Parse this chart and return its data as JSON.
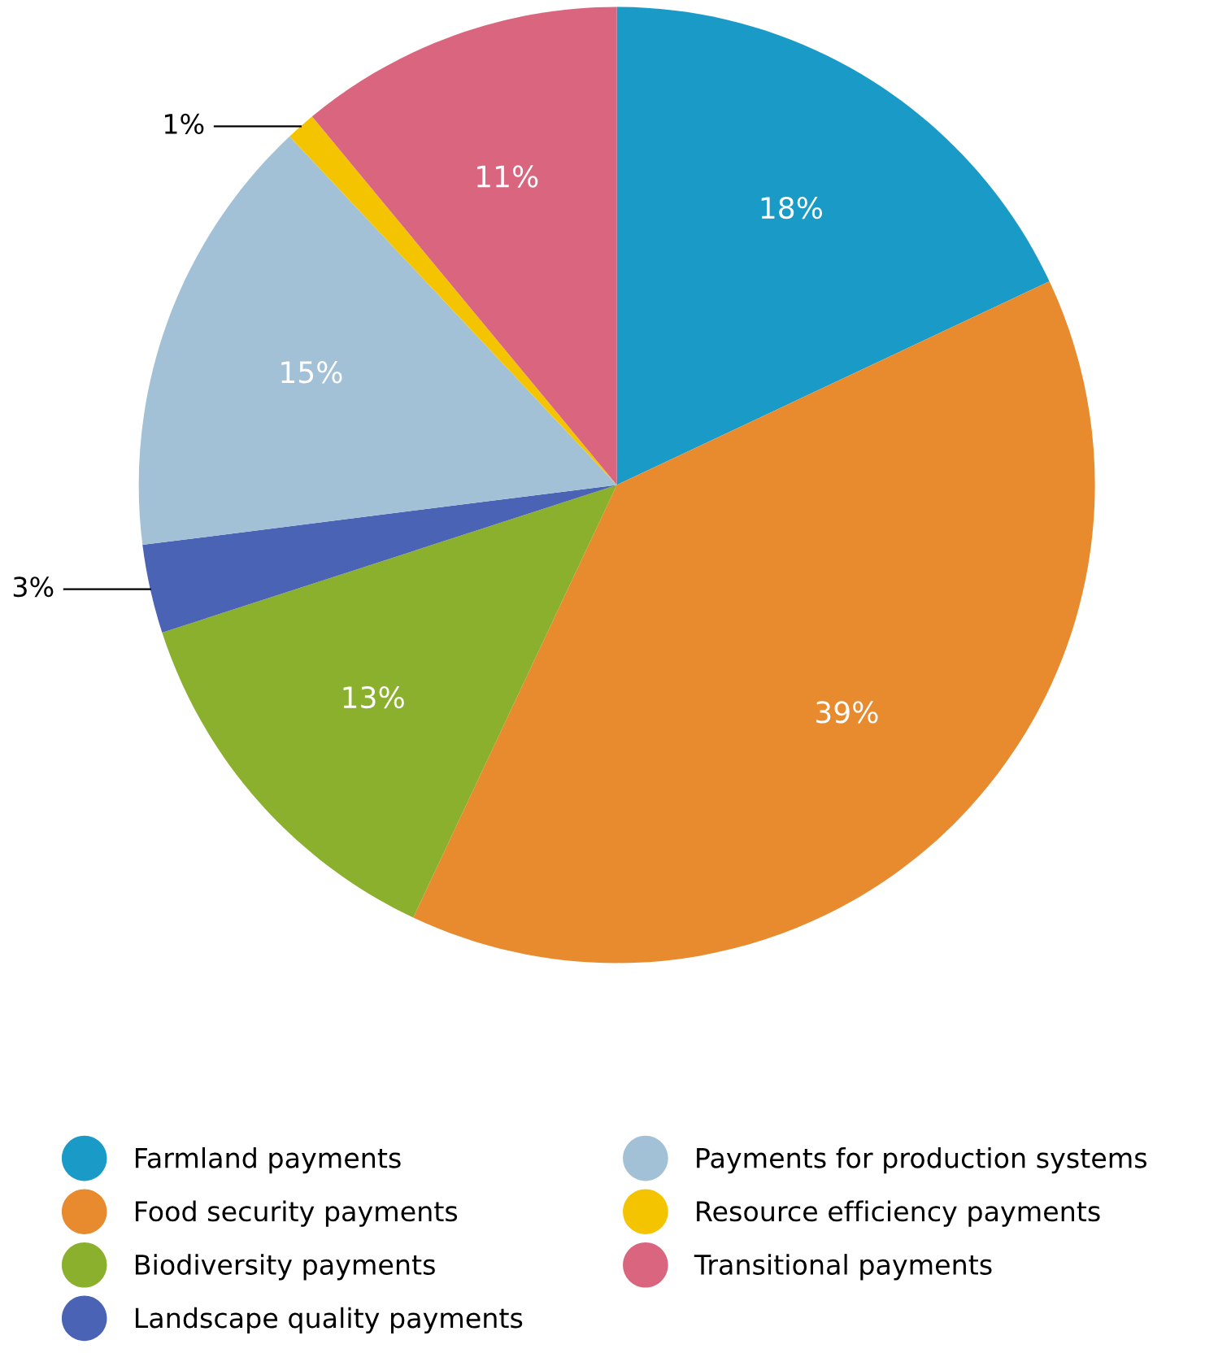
{
  "chart_data": {
    "type": "pie",
    "categories": [
      "Farmland payments",
      "Food security payments",
      "Biodiversity payments",
      "Landscape quality payments",
      "Payments for production systems",
      "Resource efficiency payments",
      "Transitional payments"
    ],
    "values": [
      18,
      39,
      13,
      3,
      15,
      1,
      11
    ],
    "colors": [
      "#1a9bc7",
      "#e88a2e",
      "#8bb02e",
      "#4a63b5",
      "#a3c1d6",
      "#f5c400",
      "#d9657f"
    ],
    "value_labels": [
      "18%",
      "39%",
      "13%",
      "3%",
      "15%",
      "1%",
      "11%"
    ],
    "legend": "bottom"
  }
}
